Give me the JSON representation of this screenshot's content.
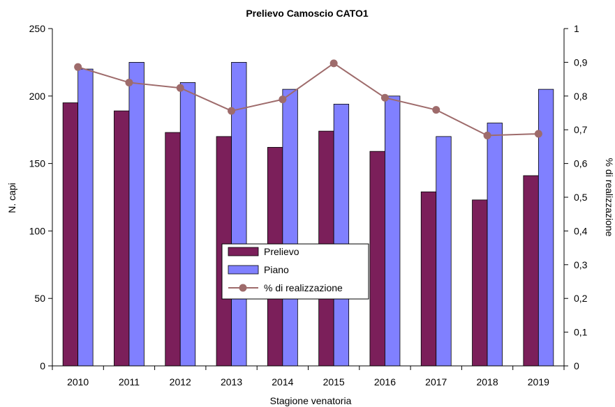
{
  "chart_data": {
    "type": "bar",
    "title": "Prelievo Camoscio CATO1",
    "xlabel": "Stagione venatoria",
    "ylabel": "N. capi",
    "y2label": "% di realizzazione",
    "categories": [
      "2010",
      "2011",
      "2012",
      "2013",
      "2014",
      "2015",
      "2016",
      "2017",
      "2018",
      "2019"
    ],
    "ylim": [
      0,
      250
    ],
    "yticks": [
      "0",
      "50",
      "100",
      "150",
      "200",
      "250"
    ],
    "y2lim": [
      0,
      1
    ],
    "y2ticks": [
      "0",
      "0,1",
      "0,2",
      "0,3",
      "0,4",
      "0,5",
      "0,6",
      "0,7",
      "0,8",
      "0,9",
      "1"
    ],
    "series": [
      {
        "name": "Prelievo",
        "kind": "bar",
        "axis": "left",
        "color": "#7b1f5a",
        "values": [
          195,
          189,
          173,
          170,
          162,
          174,
          159,
          129,
          123,
          141
        ]
      },
      {
        "name": "Piano",
        "kind": "bar",
        "axis": "left",
        "color": "#8080ff",
        "values": [
          220,
          225,
          210,
          225,
          205,
          194,
          200,
          170,
          180,
          205
        ]
      },
      {
        "name": "% di realizzazione",
        "kind": "line",
        "axis": "right",
        "color": "#9e6b6b",
        "values": [
          0.886,
          0.84,
          0.824,
          0.756,
          0.79,
          0.897,
          0.795,
          0.759,
          0.683,
          0.688
        ]
      }
    ],
    "legend": {
      "position": "center-bottom",
      "items": [
        "Prelievo",
        "Piano",
        "% di realizzazione"
      ]
    },
    "grid": false
  }
}
